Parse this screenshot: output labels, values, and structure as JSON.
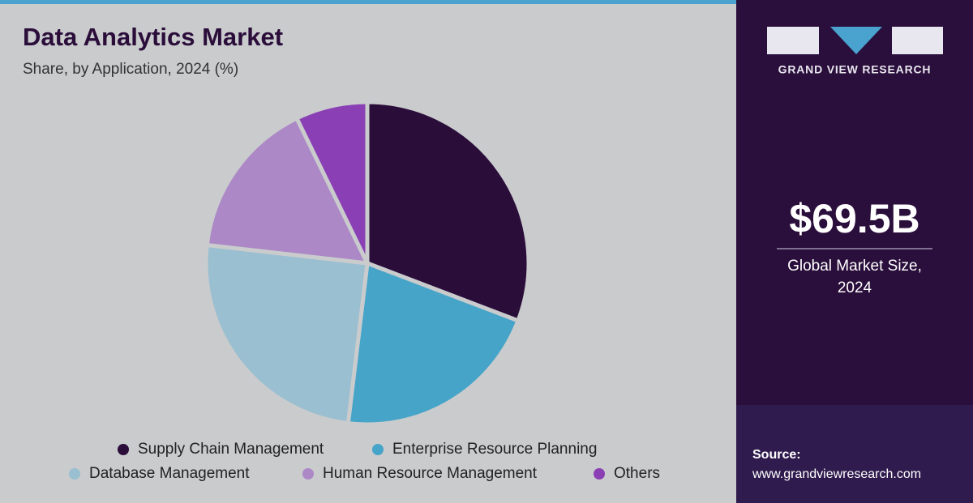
{
  "chart_data": {
    "type": "pie",
    "title": "Data Analytics Market",
    "subtitle": "Share, by Application, 2024 (%)",
    "categories": [
      "Supply Chain Management",
      "Enterprise Resource Planning",
      "Database Management",
      "Human Resource Management",
      "Others"
    ],
    "values": [
      30.8,
      21.1,
      24.9,
      16.0,
      7.2
    ],
    "colors": [
      "#2b0d3a",
      "#47a4c9",
      "#99bfd0",
      "#ac88c6",
      "#8a3fb5"
    ]
  },
  "side_panel": {
    "brand": "GRAND VIEW RESEARCH",
    "market_size": "$69.5B",
    "market_size_label": "Global Market Size, 2024",
    "source_label": "Source:",
    "source_url": "www.grandviewresearch.com"
  }
}
